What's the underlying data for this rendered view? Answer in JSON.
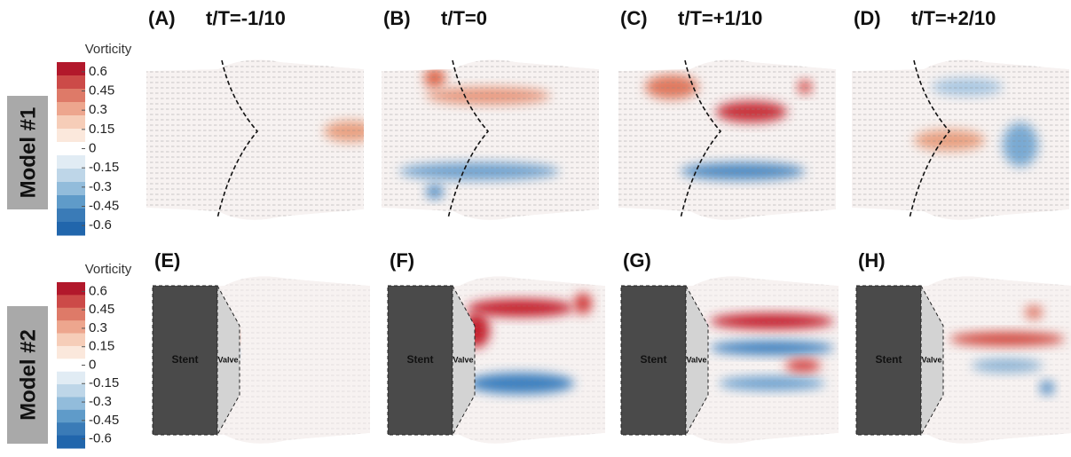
{
  "colorbars": [
    {
      "title": "Vorticity",
      "ticks": [
        0.6,
        0.45,
        0.3,
        0.15,
        0,
        -0.15,
        -0.3,
        -0.45,
        -0.6
      ]
    },
    {
      "title": "Vorticity",
      "ticks": [
        0.6,
        0.45,
        0.3,
        0.15,
        0,
        -0.15,
        -0.3,
        -0.45,
        -0.6
      ]
    }
  ],
  "colors": [
    "#b2182b",
    "#cc4a48",
    "#de7a68",
    "#eda68e",
    "#f6cdb8",
    "#fbe8dc",
    "#ffffff",
    "#e1ecf4",
    "#bed6e8",
    "#92bcdb",
    "#5f9bc9",
    "#3a7bb7",
    "#2166ac"
  ],
  "rows": [
    {
      "label": "Model #1",
      "panels": [
        {
          "label": "(A)",
          "time": "t/T=-1/10"
        },
        {
          "label": "(B)",
          "time": "t/T=0"
        },
        {
          "label": "(C)",
          "time": "t/T=+1/10"
        },
        {
          "label": "(D)",
          "time": "t/T=+2/10"
        }
      ]
    },
    {
      "label": "Model #2",
      "panels": [
        {
          "label": "(E)",
          "stent": "Stent",
          "valve": "Valve"
        },
        {
          "label": "(F)",
          "stent": "Stent",
          "valve": "Valve"
        },
        {
          "label": "(G)",
          "stent": "Stent",
          "valve": "Valve"
        },
        {
          "label": "(H)",
          "stent": "Stent",
          "valve": "Valve"
        }
      ]
    }
  ]
}
